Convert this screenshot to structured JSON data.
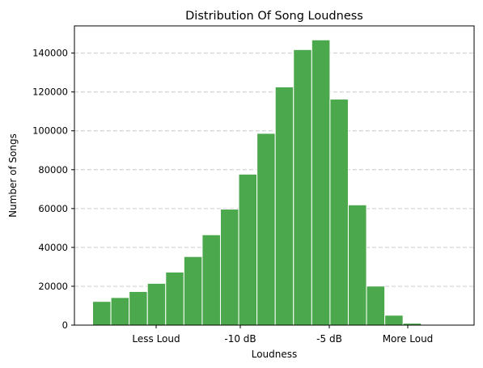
{
  "chart_data": {
    "type": "bar",
    "title": "Distribution Of Song Loudness",
    "xlabel": "Loudness",
    "ylabel": "Number of Songs",
    "x_tick_labels": [
      "Less Loud",
      "-10 dB",
      "-5 dB",
      "More Loud"
    ],
    "y_ticks": [
      0,
      20000,
      40000,
      60000,
      80000,
      100000,
      120000,
      140000
    ],
    "y_tick_labels": [
      "0",
      "20000",
      "40000",
      "60000",
      "80000",
      "100000",
      "120000",
      "140000"
    ],
    "ylim": [
      0,
      154000
    ],
    "grid": "horizontal dashed",
    "bar_color": "#4ca84c",
    "bar_edge_color": "#ffffff",
    "bin_count": 21,
    "values": [
      12200,
      14200,
      17300,
      21500,
      27300,
      35300,
      46500,
      59700,
      77700,
      98700,
      122600,
      141800,
      146800,
      116300,
      61900,
      20100,
      5100,
      1000,
      200,
      100,
      50
    ]
  }
}
